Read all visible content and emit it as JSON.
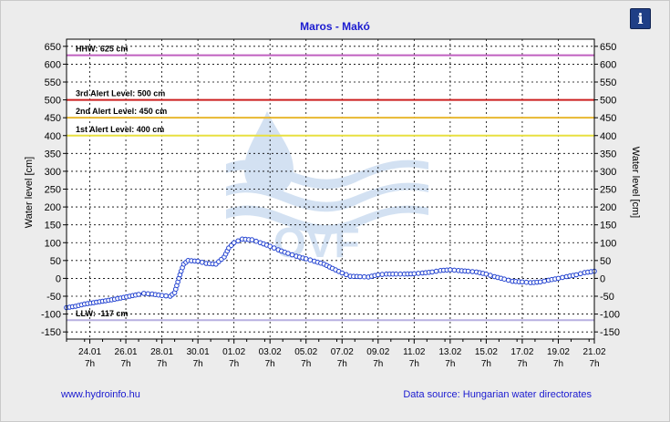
{
  "header": {
    "title": "Maros - Makó",
    "info_icon": "info-icon",
    "info_glyph": "i"
  },
  "footer": {
    "site_link": "www.hydroinfo.hu",
    "source": "Data source: Hungarian water directorates"
  },
  "watermark": {
    "text": "OVF"
  },
  "chart_data": {
    "type": "line",
    "title": "Maros - Makó",
    "ylabel_left": "Water level [cm]",
    "ylabel_right": "Water level [cm]",
    "ylim": [
      -170,
      670
    ],
    "yticks": [
      -150,
      -100,
      -50,
      0,
      50,
      100,
      150,
      200,
      250,
      300,
      350,
      400,
      450,
      500,
      550,
      600,
      650
    ],
    "grid": true,
    "x_start": "2024-01-23 00:00",
    "x_end": "2024-02-21 07:00",
    "xticks": [
      {
        "date": "24.01",
        "hour": "7h",
        "t": "2024-01-24 07:00"
      },
      {
        "date": "26.01",
        "hour": "7h",
        "t": "2024-01-26 07:00"
      },
      {
        "date": "28.01",
        "hour": "7h",
        "t": "2024-01-28 07:00"
      },
      {
        "date": "30.01",
        "hour": "7h",
        "t": "2024-01-30 07:00"
      },
      {
        "date": "01.02",
        "hour": "7h",
        "t": "2024-02-01 07:00"
      },
      {
        "date": "03.02",
        "hour": "7h",
        "t": "2024-02-03 07:00"
      },
      {
        "date": "05.02",
        "hour": "7h",
        "t": "2024-02-05 07:00"
      },
      {
        "date": "07.02",
        "hour": "7h",
        "t": "2024-02-07 07:00"
      },
      {
        "date": "09.02",
        "hour": "7h",
        "t": "2024-02-09 07:00"
      },
      {
        "date": "11.02",
        "hour": "7h",
        "t": "2024-02-11 07:00"
      },
      {
        "date": "13.02",
        "hour": "7h",
        "t": "2024-02-13 07:00"
      },
      {
        "date": "15.02",
        "hour": "7h",
        "t": "2024-02-15 07:00"
      },
      {
        "date": "17.02",
        "hour": "7h",
        "t": "2024-02-17 07:00"
      },
      {
        "date": "19.02",
        "hour": "7h",
        "t": "2024-02-19 07:00"
      },
      {
        "date": "21.02",
        "hour": "7h",
        "t": "2024-02-21 07:00"
      }
    ],
    "reference_lines": [
      {
        "label": "HHW: 625 cm",
        "value": 625,
        "color": "#c060c0"
      },
      {
        "label": "3rd Alert Level: 500 cm",
        "value": 500,
        "color": "#cc2020"
      },
      {
        "label": "2nd Alert Level: 450 cm",
        "value": 450,
        "color": "#e8b830"
      },
      {
        "label": "1st Alert Level: 400 cm",
        "value": 400,
        "color": "#e8e040"
      },
      {
        "label": "LLW: -117 cm",
        "value": -117,
        "color": "#b8b0e0"
      }
    ],
    "series": [
      {
        "line_color": "#0a1aa0",
        "marker_color": "#2040d0",
        "points": [
          [
            "2024-01-23 00:00",
            -82
          ],
          [
            "2024-01-23 12:00",
            -78
          ],
          [
            "2024-01-24 00:00",
            -72
          ],
          [
            "2024-01-24 12:00",
            -68
          ],
          [
            "2024-01-25 00:00",
            -64
          ],
          [
            "2024-01-25 12:00",
            -60
          ],
          [
            "2024-01-26 00:00",
            -55
          ],
          [
            "2024-01-26 12:00",
            -50
          ],
          [
            "2024-01-27 00:00",
            -45
          ],
          [
            "2024-01-27 07:00",
            -42
          ],
          [
            "2024-01-27 18:00",
            -44
          ],
          [
            "2024-01-28 07:00",
            -48
          ],
          [
            "2024-01-28 18:00",
            -50
          ],
          [
            "2024-01-29 00:00",
            -40
          ],
          [
            "2024-01-29 07:00",
            10
          ],
          [
            "2024-01-29 12:00",
            40
          ],
          [
            "2024-01-29 18:00",
            50
          ],
          [
            "2024-01-30 07:00",
            48
          ],
          [
            "2024-01-30 18:00",
            42
          ],
          [
            "2024-01-31 07:00",
            40
          ],
          [
            "2024-01-31 18:00",
            60
          ],
          [
            "2024-02-01 00:00",
            85
          ],
          [
            "2024-02-01 07:00",
            100
          ],
          [
            "2024-02-01 18:00",
            110
          ],
          [
            "2024-02-02 07:00",
            108
          ],
          [
            "2024-02-02 18:00",
            100
          ],
          [
            "2024-02-03 07:00",
            90
          ],
          [
            "2024-02-03 18:00",
            80
          ],
          [
            "2024-02-04 07:00",
            70
          ],
          [
            "2024-02-04 18:00",
            62
          ],
          [
            "2024-02-05 07:00",
            55
          ],
          [
            "2024-02-05 18:00",
            48
          ],
          [
            "2024-02-06 07:00",
            40
          ],
          [
            "2024-02-06 18:00",
            28
          ],
          [
            "2024-02-07 07:00",
            15
          ],
          [
            "2024-02-07 18:00",
            6
          ],
          [
            "2024-02-08 07:00",
            5
          ],
          [
            "2024-02-08 18:00",
            4
          ],
          [
            "2024-02-09 07:00",
            10
          ],
          [
            "2024-02-09 18:00",
            12
          ],
          [
            "2024-02-10 07:00",
            12
          ],
          [
            "2024-02-10 18:00",
            12
          ],
          [
            "2024-02-11 07:00",
            13
          ],
          [
            "2024-02-11 18:00",
            15
          ],
          [
            "2024-02-12 07:00",
            18
          ],
          [
            "2024-02-12 18:00",
            22
          ],
          [
            "2024-02-13 07:00",
            24
          ],
          [
            "2024-02-13 18:00",
            22
          ],
          [
            "2024-02-14 07:00",
            20
          ],
          [
            "2024-02-14 18:00",
            18
          ],
          [
            "2024-02-15 07:00",
            12
          ],
          [
            "2024-02-15 18:00",
            5
          ],
          [
            "2024-02-16 07:00",
            -2
          ],
          [
            "2024-02-16 18:00",
            -8
          ],
          [
            "2024-02-17 07:00",
            -10
          ],
          [
            "2024-02-17 18:00",
            -12
          ],
          [
            "2024-02-18 07:00",
            -10
          ],
          [
            "2024-02-18 18:00",
            -5
          ],
          [
            "2024-02-19 07:00",
            0
          ],
          [
            "2024-02-19 18:00",
            5
          ],
          [
            "2024-02-20 07:00",
            10
          ],
          [
            "2024-02-20 18:00",
            16
          ],
          [
            "2024-02-21 07:00",
            20
          ]
        ]
      }
    ]
  }
}
